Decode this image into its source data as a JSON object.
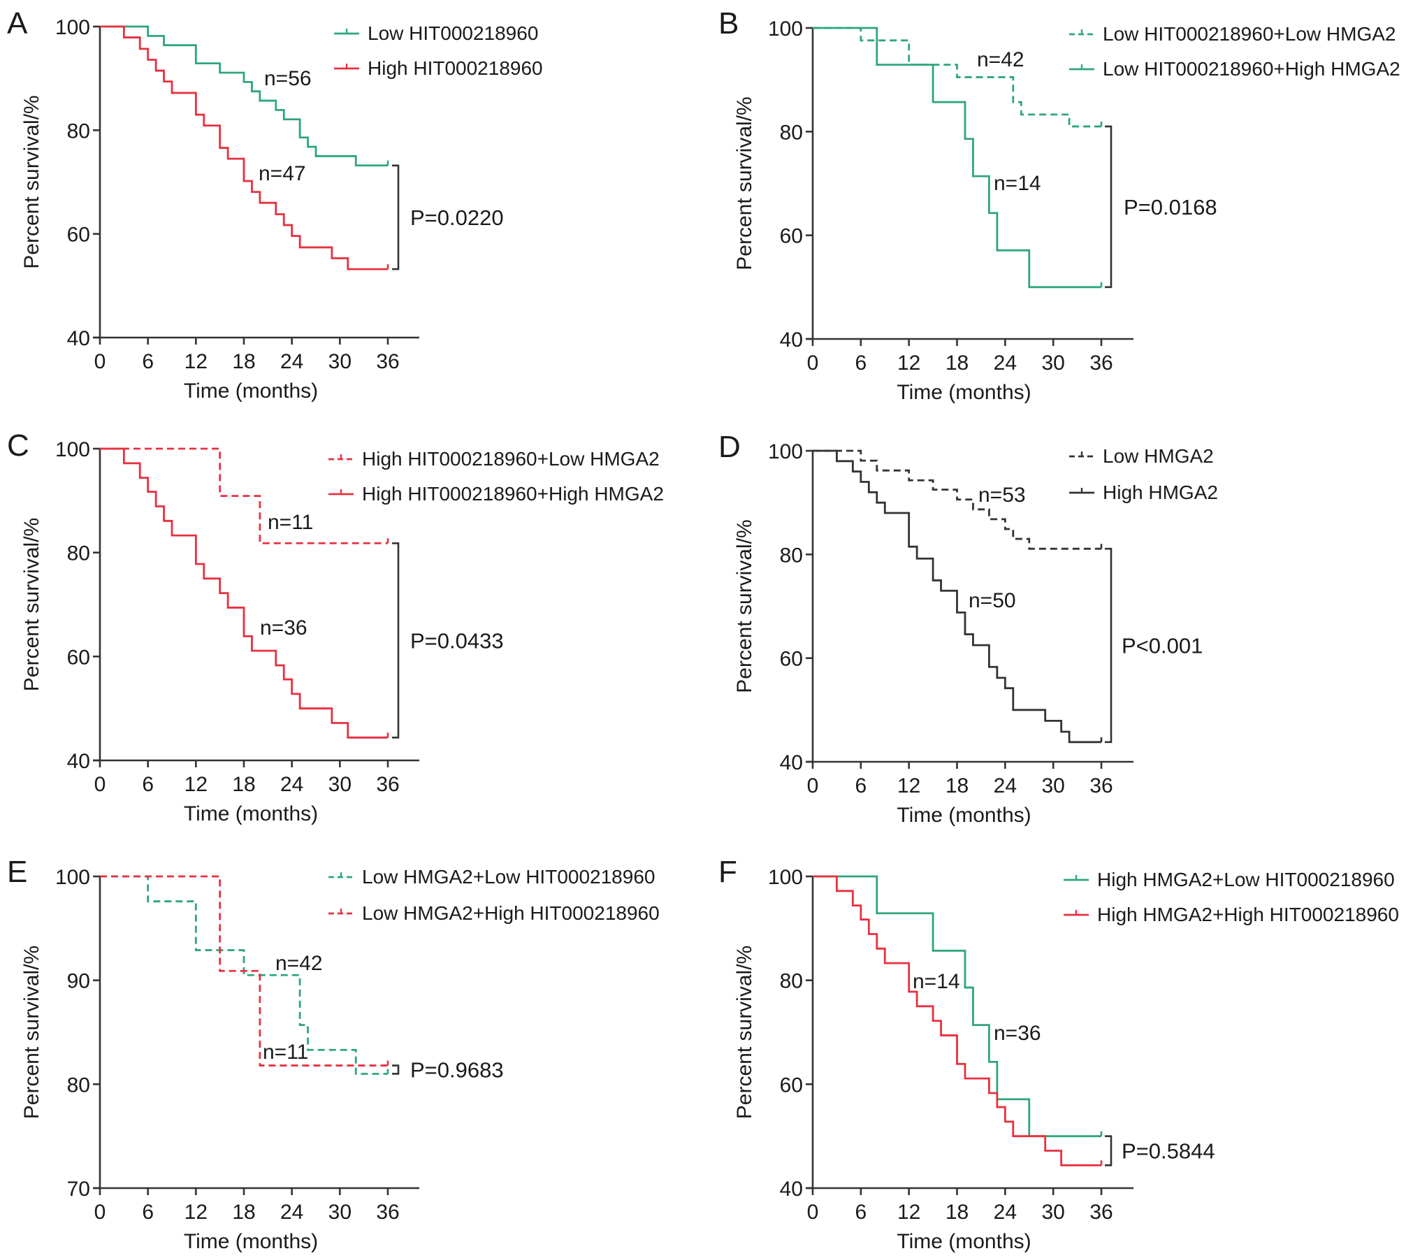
{
  "colors": {
    "green": "#2ea67a",
    "red": "#e8303f",
    "black": "#333333"
  },
  "chart_data": [
    {
      "type": "line",
      "subtype": "kaplan-meier",
      "panel": "A",
      "xlabel": "Time (months)",
      "ylabel": "Percent survival/%",
      "xlim": [
        0,
        36
      ],
      "ylim": [
        40,
        100
      ],
      "xticks": [
        0,
        6,
        12,
        18,
        24,
        30,
        36
      ],
      "yticks": [
        40,
        60,
        80,
        100
      ],
      "legend_position": "top-right",
      "p_value": "P=0.0220",
      "series": [
        {
          "name": "Low HIT000218960",
          "color": "green",
          "dashed": false,
          "n_label": "n=56",
          "steps": [
            [
              0,
              100
            ],
            [
              6,
              98.2
            ],
            [
              8,
              96.4
            ],
            [
              12,
              92.9
            ],
            [
              15,
              91.1
            ],
            [
              18,
              89.3
            ],
            [
              19,
              87.5
            ],
            [
              20,
              85.7
            ],
            [
              22,
              83.9
            ],
            [
              23,
              82.1
            ],
            [
              25,
              78.6
            ],
            [
              26,
              76.8
            ],
            [
              27,
              75
            ],
            [
              32,
              73.2
            ]
          ],
          "end": 36
        },
        {
          "name": "High HIT000218960",
          "color": "red",
          "dashed": false,
          "n_label": "n=47",
          "steps": [
            [
              0,
              100
            ],
            [
              3,
              97.9
            ],
            [
              5,
              95.7
            ],
            [
              6,
              93.6
            ],
            [
              7,
              91.5
            ],
            [
              8,
              89.4
            ],
            [
              9,
              87.2
            ],
            [
              12,
              83
            ],
            [
              13,
              80.9
            ],
            [
              15,
              76.6
            ],
            [
              16,
              74.5
            ],
            [
              18,
              70.2
            ],
            [
              19,
              68.1
            ],
            [
              20,
              66
            ],
            [
              22,
              63.8
            ],
            [
              23,
              61.7
            ],
            [
              24,
              59.6
            ],
            [
              25,
              57.4
            ],
            [
              29,
              55.3
            ],
            [
              31,
              53.2
            ]
          ],
          "end": 36
        }
      ]
    },
    {
      "type": "line",
      "subtype": "kaplan-meier",
      "panel": "B",
      "xlabel": "Time (months)",
      "ylabel": "Percent survival/%",
      "xlim": [
        0,
        36
      ],
      "ylim": [
        40,
        100
      ],
      "xticks": [
        0,
        6,
        12,
        18,
        24,
        30,
        36
      ],
      "yticks": [
        40,
        60,
        80,
        100
      ],
      "legend_position": "top-right",
      "p_value": "P=0.0168",
      "series": [
        {
          "name": "Low HIT000218960+Low HMGA2",
          "color": "green",
          "dashed": true,
          "n_label": "n=42",
          "steps": [
            [
              0,
              100
            ],
            [
              6,
              97.6
            ],
            [
              12,
              92.9
            ],
            [
              18,
              90.5
            ],
            [
              25,
              85.7
            ],
            [
              26,
              83.3
            ],
            [
              32,
              81
            ]
          ],
          "end": 36
        },
        {
          "name": "Low HIT000218960+High HMGA2",
          "color": "green",
          "dashed": false,
          "n_label": "n=14",
          "steps": [
            [
              0,
              100
            ],
            [
              8,
              92.9
            ],
            [
              15,
              85.7
            ],
            [
              19,
              78.6
            ],
            [
              20,
              71.4
            ],
            [
              22,
              64.3
            ],
            [
              23,
              57.1
            ],
            [
              27,
              50
            ]
          ],
          "end": 36
        }
      ]
    },
    {
      "type": "line",
      "subtype": "kaplan-meier",
      "panel": "C",
      "xlabel": "Time (months)",
      "ylabel": "Percent survival/%",
      "xlim": [
        0,
        36
      ],
      "ylim": [
        40,
        100
      ],
      "xticks": [
        0,
        6,
        12,
        18,
        24,
        30,
        36
      ],
      "yticks": [
        40,
        60,
        80,
        100
      ],
      "legend_position": "top-right",
      "p_value": "P=0.0433",
      "series": [
        {
          "name": "High HIT000218960+Low HMGA2",
          "color": "red",
          "dashed": true,
          "n_label": "n=11",
          "steps": [
            [
              0,
              100
            ],
            [
              15,
              90.9
            ],
            [
              20,
              81.8
            ]
          ],
          "end": 36
        },
        {
          "name": "High HIT000218960+High HMGA2",
          "color": "red",
          "dashed": false,
          "n_label": "n=36",
          "steps": [
            [
              0,
              100
            ],
            [
              3,
              97.2
            ],
            [
              5,
              94.4
            ],
            [
              6,
              91.7
            ],
            [
              7,
              88.9
            ],
            [
              8,
              86.1
            ],
            [
              9,
              83.3
            ],
            [
              12,
              77.8
            ],
            [
              13,
              75
            ],
            [
              15,
              72.2
            ],
            [
              16,
              69.4
            ],
            [
              18,
              63.9
            ],
            [
              19,
              61.1
            ],
            [
              22,
              58.3
            ],
            [
              23,
              55.6
            ],
            [
              24,
              52.8
            ],
            [
              25,
              50
            ],
            [
              29,
              47.2
            ],
            [
              31,
              44.4
            ]
          ],
          "end": 36
        }
      ]
    },
    {
      "type": "line",
      "subtype": "kaplan-meier",
      "panel": "D",
      "xlabel": "Time (months)",
      "ylabel": "Percent survival/%",
      "xlim": [
        0,
        36
      ],
      "ylim": [
        40,
        100
      ],
      "xticks": [
        0,
        6,
        12,
        18,
        24,
        30,
        36
      ],
      "yticks": [
        40,
        60,
        80,
        100
      ],
      "legend_position": "top-right",
      "p_value": "P<0.001",
      "series": [
        {
          "name": "Low HMGA2",
          "color": "black",
          "dashed": true,
          "n_label": "n=53",
          "steps": [
            [
              0,
              100
            ],
            [
              6,
              98.1
            ],
            [
              8,
              96.2
            ],
            [
              12,
              94.3
            ],
            [
              15,
              92.5
            ],
            [
              18,
              90.6
            ],
            [
              20,
              88.7
            ],
            [
              22,
              86.8
            ],
            [
              24,
              84.9
            ],
            [
              25,
              83
            ],
            [
              27,
              81.1
            ]
          ],
          "end": 36
        },
        {
          "name": "High HMGA2",
          "color": "black",
          "dashed": false,
          "n_label": "n=50",
          "steps": [
            [
              0,
              100
            ],
            [
              3,
              98
            ],
            [
              5,
              96
            ],
            [
              6,
              94
            ],
            [
              7,
              92
            ],
            [
              8,
              90
            ],
            [
              9,
              88
            ],
            [
              12,
              81.5
            ],
            [
              13,
              79.2
            ],
            [
              15,
              75
            ],
            [
              16,
              73
            ],
            [
              18,
              68.8
            ],
            [
              19,
              64.6
            ],
            [
              20,
              62.5
            ],
            [
              22,
              58.3
            ],
            [
              23,
              56.2
            ],
            [
              24,
              54.2
            ],
            [
              25,
              50
            ],
            [
              29,
              47.9
            ],
            [
              31,
              45.8
            ],
            [
              32,
              43.8
            ]
          ],
          "end": 36
        }
      ]
    },
    {
      "type": "line",
      "subtype": "kaplan-meier",
      "panel": "E",
      "xlabel": "Time (months)",
      "ylabel": "Percent survival/%",
      "xlim": [
        0,
        36
      ],
      "ylim": [
        70,
        100
      ],
      "xticks": [
        0,
        6,
        12,
        18,
        24,
        30,
        36
      ],
      "yticks": [
        70,
        80,
        90,
        100
      ],
      "legend_position": "top-right",
      "p_value": "P=0.9683",
      "series": [
        {
          "name": "Low HMGA2+Low HIT000218960",
          "color": "green",
          "dashed": true,
          "n_label": "n=42",
          "steps": [
            [
              0,
              100
            ],
            [
              6,
              97.6
            ],
            [
              12,
              92.9
            ],
            [
              18,
              90.5
            ],
            [
              25,
              85.7
            ],
            [
              26,
              83.3
            ],
            [
              32,
              81
            ]
          ],
          "end": 36
        },
        {
          "name": "Low HMGA2+High HIT000218960",
          "color": "red",
          "dashed": true,
          "n_label": "n=11",
          "steps": [
            [
              0,
              100
            ],
            [
              15,
              90.9
            ],
            [
              20,
              81.8
            ]
          ],
          "end": 36
        }
      ]
    },
    {
      "type": "line",
      "subtype": "kaplan-meier",
      "panel": "F",
      "xlabel": "Time (months)",
      "ylabel": "Percent survival/%",
      "xlim": [
        0,
        36
      ],
      "ylim": [
        40,
        100
      ],
      "xticks": [
        0,
        6,
        12,
        18,
        24,
        30,
        36
      ],
      "yticks": [
        40,
        60,
        80,
        100
      ],
      "legend_position": "top-right",
      "p_value": "P=0.5844",
      "series": [
        {
          "name": "High HMGA2+Low HIT000218960",
          "color": "green",
          "dashed": false,
          "n_label": "n=14",
          "steps": [
            [
              0,
              100
            ],
            [
              8,
              92.9
            ],
            [
              15,
              85.7
            ],
            [
              19,
              78.6
            ],
            [
              20,
              71.4
            ],
            [
              22,
              64.3
            ],
            [
              23,
              57.1
            ],
            [
              27,
              50
            ]
          ],
          "end": 36
        },
        {
          "name": "High HMGA2+High HIT000218960",
          "color": "red",
          "dashed": false,
          "n_label": "n=36",
          "steps": [
            [
              0,
              100
            ],
            [
              3,
              97.2
            ],
            [
              5,
              94.4
            ],
            [
              6,
              91.7
            ],
            [
              7,
              88.9
            ],
            [
              8,
              86.1
            ],
            [
              9,
              83.3
            ],
            [
              12,
              77.8
            ],
            [
              13,
              75
            ],
            [
              15,
              72.2
            ],
            [
              16,
              69.4
            ],
            [
              18,
              63.9
            ],
            [
              19,
              61.1
            ],
            [
              22,
              58.3
            ],
            [
              23,
              55.6
            ],
            [
              24,
              52.8
            ],
            [
              25,
              50
            ],
            [
              29,
              47.2
            ],
            [
              31,
              44.4
            ]
          ],
          "end": 36
        }
      ]
    }
  ]
}
